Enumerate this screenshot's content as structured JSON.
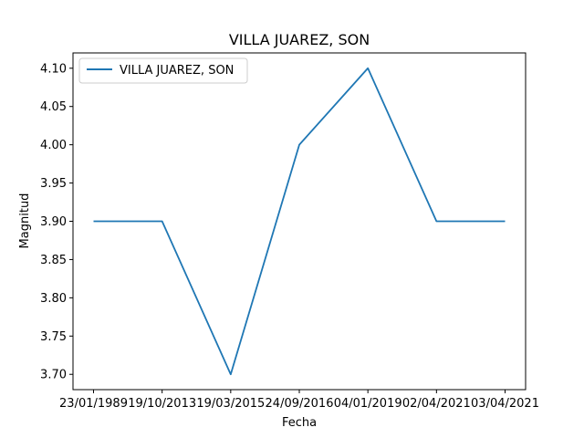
{
  "chart_data": {
    "type": "line",
    "title": "VILLA JUAREZ, SON",
    "xlabel": "Fecha",
    "ylabel": "Magnitud",
    "categories": [
      "23/01/1989",
      "19/10/2013",
      "19/03/2015",
      "24/09/2016",
      "04/01/2019",
      "02/04/2021",
      "03/04/2021"
    ],
    "series": [
      {
        "name": "VILLA JUAREZ, SON",
        "values": [
          3.9,
          3.9,
          3.7,
          4.0,
          4.1,
          3.9,
          3.9
        ],
        "color": "#1f77b4"
      }
    ],
    "ylim": [
      3.68,
      4.12
    ],
    "yticks": [
      "3.70",
      "3.75",
      "3.80",
      "3.85",
      "3.90",
      "3.95",
      "4.00",
      "4.05",
      "4.10"
    ],
    "grid": false,
    "legend_position": "top-left"
  }
}
